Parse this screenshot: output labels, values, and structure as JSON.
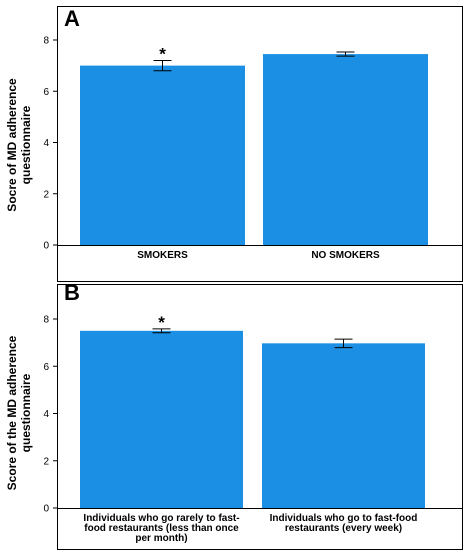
{
  "chart_data": [
    {
      "type": "bar",
      "panel_label": "A",
      "categories": [
        "SMOKERS",
        "NO SMOKERS"
      ],
      "values": [
        7.0,
        7.45
      ],
      "error": [
        0.2,
        0.08
      ],
      "significance": [
        "*",
        ""
      ],
      "ylabel": [
        "Socre of MD adherence",
        "questionnaire"
      ],
      "xlabel": "",
      "ylim": [
        0,
        8
      ],
      "yticks": [
        0,
        2,
        4,
        6,
        8
      ],
      "bar_color": "#1a8fe3",
      "grid": false
    },
    {
      "type": "bar",
      "panel_label": "B",
      "categories": [
        [
          "Individuals who go rarely to fast-",
          "food restaurants (less than once",
          "per month)"
        ],
        [
          "Individuals who go to fast-food",
          "restaurants (every week)"
        ]
      ],
      "values": [
        7.5,
        6.97
      ],
      "error": [
        0.08,
        0.18
      ],
      "significance": [
        "*",
        ""
      ],
      "ylabel": [
        "Score of the MD adherence",
        "questionnaire"
      ],
      "xlabel": "",
      "ylim": [
        0,
        8
      ],
      "yticks": [
        0,
        2,
        4,
        6,
        8
      ],
      "bar_color": "#1a8fe3",
      "grid": false
    }
  ]
}
